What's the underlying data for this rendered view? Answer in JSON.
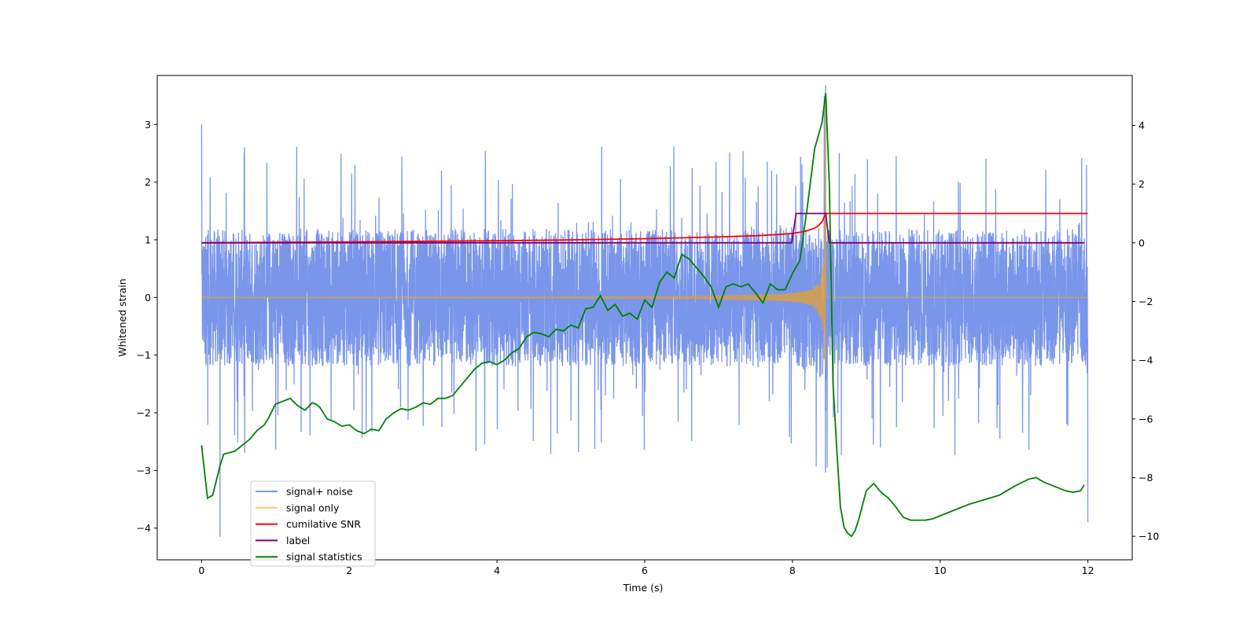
{
  "chart_data": {
    "type": "line",
    "title": "",
    "xlabel": "Time (s)",
    "ylabel": "Whitened strain",
    "y2label": "",
    "xlim": [
      -0.6,
      12.6
    ],
    "ylim": [
      -4.55,
      3.85
    ],
    "y2lim": [
      -10.8,
      5.7
    ],
    "xticks": [
      0,
      2,
      4,
      6,
      8,
      10,
      12
    ],
    "yticks": [
      -4,
      -3,
      -2,
      -1,
      0,
      1,
      2,
      3
    ],
    "y2ticks": [
      -10,
      -8,
      -6,
      -4,
      -2,
      0,
      2,
      4
    ],
    "legend_position": "lower-left",
    "series": [
      {
        "name": "signal+ noise",
        "axis": "left",
        "color": "#4169e1",
        "opacity": 0.7,
        "description": "whitened noise plus injected signal, sampled densely from 0 to 12 s",
        "noise_band_center": 0.0,
        "noise_band_halfwidth": 1.25,
        "noise_outlier_max": 2.65,
        "noise_outlier_min": -2.75,
        "extremes": [
          {
            "x": 0.0,
            "y": 3.0
          },
          {
            "x": 0.25,
            "y": -4.15
          },
          {
            "x": 8.43,
            "y": 3.5
          },
          {
            "x": 8.47,
            "y": -2.95
          },
          {
            "x": 12.0,
            "y": -3.9
          }
        ]
      },
      {
        "name": "signal only",
        "axis": "left",
        "color": "#ffa500",
        "opacity": 0.6,
        "description": "chirp waveform growing in amplitude until merger at ~8.45 s, then zero",
        "merger_time": 8.45,
        "peak_amplitude": 3.45,
        "start_time": 0.0,
        "end_time": 12.0
      },
      {
        "name": "cumilative SNR",
        "axis": "right",
        "color": "#ff0000",
        "x": [
          0,
          2,
          4,
          5,
          6,
          7,
          7.5,
          7.8,
          8.0,
          8.1,
          8.2,
          8.3,
          8.35,
          8.4,
          8.43,
          8.45,
          12
        ],
        "y": [
          0.0,
          0.03,
          0.07,
          0.1,
          0.14,
          0.2,
          0.24,
          0.28,
          0.32,
          0.36,
          0.41,
          0.5,
          0.58,
          0.72,
          0.88,
          1.0,
          1.0
        ]
      },
      {
        "name": "label",
        "axis": "right",
        "color": "#800080",
        "x": [
          0,
          7.99,
          8.05,
          8.45,
          8.5,
          11.95
        ],
        "y": [
          0,
          0,
          1,
          1,
          0,
          0
        ]
      },
      {
        "name": "signal statistics",
        "axis": "right",
        "color": "#008000",
        "x": [
          0.0,
          0.08,
          0.15,
          0.25,
          0.3,
          0.45,
          0.55,
          0.65,
          0.75,
          0.85,
          0.9,
          1.0,
          1.1,
          1.2,
          1.3,
          1.4,
          1.5,
          1.55,
          1.6,
          1.7,
          1.8,
          1.9,
          2.0,
          2.1,
          2.2,
          2.3,
          2.4,
          2.5,
          2.6,
          2.7,
          2.8,
          2.9,
          3.0,
          3.1,
          3.2,
          3.3,
          3.4,
          3.5,
          3.6,
          3.7,
          3.8,
          3.9,
          4.0,
          4.1,
          4.2,
          4.3,
          4.4,
          4.5,
          4.6,
          4.7,
          4.8,
          4.9,
          5.0,
          5.1,
          5.2,
          5.3,
          5.4,
          5.5,
          5.6,
          5.7,
          5.8,
          5.9,
          6.0,
          6.1,
          6.2,
          6.3,
          6.4,
          6.5,
          6.6,
          6.7,
          6.8,
          6.9,
          7.0,
          7.1,
          7.2,
          7.3,
          7.4,
          7.5,
          7.6,
          7.7,
          7.8,
          7.9,
          8.0,
          8.1,
          8.2,
          8.3,
          8.4,
          8.45,
          8.5,
          8.55,
          8.6,
          8.65,
          8.7,
          8.75,
          8.8,
          8.85,
          8.9,
          9.0,
          9.1,
          9.2,
          9.3,
          9.4,
          9.5,
          9.6,
          9.7,
          9.8,
          9.9,
          10.0,
          10.2,
          10.4,
          10.6,
          10.8,
          11.0,
          11.2,
          11.3,
          11.4,
          11.5,
          11.7,
          11.8,
          11.9,
          11.95
        ],
        "y": [
          -6.9,
          -8.7,
          -8.6,
          -7.6,
          -7.2,
          -7.1,
          -6.9,
          -6.7,
          -6.4,
          -6.2,
          -6.0,
          -5.5,
          -5.4,
          -5.3,
          -5.55,
          -5.7,
          -5.45,
          -5.5,
          -5.6,
          -6.0,
          -6.1,
          -6.25,
          -6.2,
          -6.4,
          -6.5,
          -6.35,
          -6.4,
          -6.0,
          -5.8,
          -5.65,
          -5.7,
          -5.6,
          -5.45,
          -5.5,
          -5.3,
          -5.3,
          -5.2,
          -4.9,
          -4.6,
          -4.3,
          -4.1,
          -4.05,
          -4.15,
          -4.0,
          -3.75,
          -3.6,
          -3.2,
          -3.05,
          -3.1,
          -3.2,
          -2.95,
          -3.0,
          -2.8,
          -2.9,
          -2.25,
          -2.2,
          -1.8,
          -2.3,
          -2.1,
          -2.5,
          -2.4,
          -2.6,
          -1.95,
          -2.2,
          -1.35,
          -1.0,
          -1.2,
          -0.4,
          -0.55,
          -0.85,
          -1.15,
          -1.5,
          -2.2,
          -1.5,
          -1.4,
          -1.5,
          -1.4,
          -1.7,
          -2.05,
          -1.4,
          -1.6,
          -1.6,
          -1.05,
          -0.6,
          1.2,
          3.2,
          4.1,
          5.1,
          2.0,
          -4.8,
          -7.0,
          -9.0,
          -9.7,
          -9.9,
          -10.0,
          -9.8,
          -9.4,
          -8.45,
          -8.2,
          -8.5,
          -8.7,
          -9.0,
          -9.35,
          -9.45,
          -9.45,
          -9.45,
          -9.4,
          -9.3,
          -9.1,
          -8.9,
          -8.75,
          -8.6,
          -8.3,
          -8.05,
          -8.0,
          -8.15,
          -8.25,
          -8.45,
          -8.5,
          -8.45,
          -8.25
        ]
      }
    ]
  }
}
